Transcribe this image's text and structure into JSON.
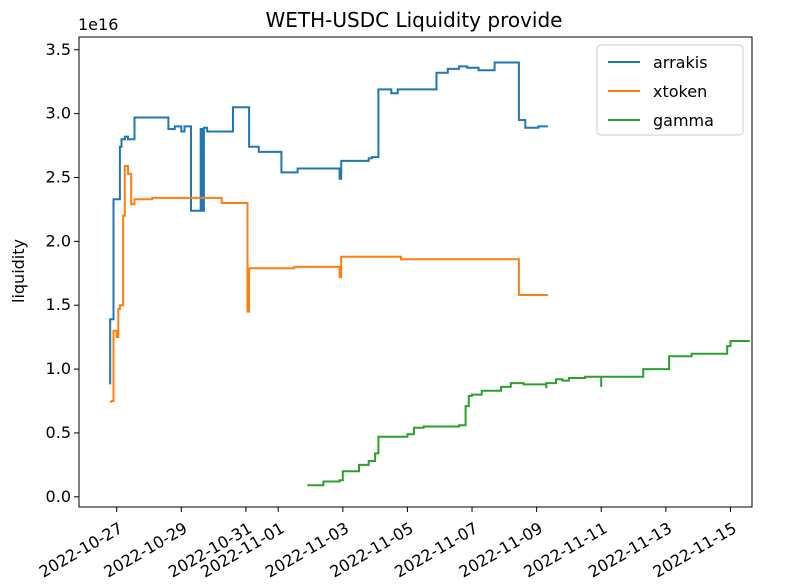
{
  "chart_data": {
    "type": "line",
    "title": "WETH-USDC Liquidity provide",
    "xlabel": "",
    "ylabel": "liquidity",
    "y_scale_label": "1e16",
    "ylim": [
      -0.08,
      3.6
    ],
    "y_ticks": [
      0.0,
      0.5,
      1.0,
      1.5,
      2.0,
      2.5,
      3.0,
      3.5
    ],
    "y_tick_labels": [
      "0.0",
      "0.5",
      "1.0",
      "1.5",
      "2.0",
      "2.5",
      "3.0",
      "3.5"
    ],
    "xlim": [
      "2022-10-25 20:00",
      "2022-11-15 16:00"
    ],
    "x_ticks": [
      "2022-10-27",
      "2022-10-29",
      "2022-10-31",
      "2022-11-01",
      "2022-11-03",
      "2022-11-05",
      "2022-11-07",
      "2022-11-09",
      "2022-11-11",
      "2022-11-13",
      "2022-11-15"
    ],
    "x_tick_labels": [
      "2022-10-27",
      "2022-10-29",
      "2022-10-31",
      "2022-11-01",
      "2022-11-03",
      "2022-11-05",
      "2022-11-07",
      "2022-11-09",
      "2022-11-11",
      "2022-11-13",
      "2022-11-15"
    ],
    "legend_position": "top-right",
    "grid": false,
    "series": [
      {
        "name": "arrakis",
        "color": "#1f77b4",
        "points": [
          [
            "2022-10-26 19:12",
            0.88
          ],
          [
            "2022-10-26 19:12",
            1.39
          ],
          [
            "2022-10-26 21:36",
            1.39
          ],
          [
            "2022-10-26 21:36",
            2.33
          ],
          [
            "2022-10-27 02:24",
            2.33
          ],
          [
            "2022-10-27 02:24",
            2.74
          ],
          [
            "2022-10-27 03:36",
            2.74
          ],
          [
            "2022-10-27 03:36",
            2.8
          ],
          [
            "2022-10-27 06:00",
            2.8
          ],
          [
            "2022-10-27 06:00",
            2.82
          ],
          [
            "2022-10-27 08:24",
            2.82
          ],
          [
            "2022-10-27 08:24",
            2.8
          ],
          [
            "2022-10-27 13:12",
            2.8
          ],
          [
            "2022-10-27 13:12",
            2.97
          ],
          [
            "2022-10-28 14:24",
            2.97
          ],
          [
            "2022-10-28 14:24",
            2.88
          ],
          [
            "2022-10-28 19:12",
            2.88
          ],
          [
            "2022-10-28 19:12",
            2.9
          ],
          [
            "2022-10-29 00:00",
            2.9
          ],
          [
            "2022-10-29 00:00",
            2.86
          ],
          [
            "2022-10-29 02:24",
            2.86
          ],
          [
            "2022-10-29 02:24",
            2.9
          ],
          [
            "2022-10-29 07:12",
            2.9
          ],
          [
            "2022-10-29 07:12",
            2.24
          ],
          [
            "2022-10-29 14:24",
            2.24
          ],
          [
            "2022-10-29 14:24",
            2.88
          ],
          [
            "2022-10-29 15:36",
            2.88
          ],
          [
            "2022-10-29 15:36",
            2.24
          ],
          [
            "2022-10-29 16:48",
            2.24
          ],
          [
            "2022-10-29 16:48",
            2.89
          ],
          [
            "2022-10-29 19:12",
            2.89
          ],
          [
            "2022-10-29 19:12",
            2.86
          ],
          [
            "2022-10-30 14:24",
            2.86
          ],
          [
            "2022-10-30 14:24",
            3.05
          ],
          [
            "2022-10-31 02:24",
            3.05
          ],
          [
            "2022-10-31 02:24",
            2.74
          ],
          [
            "2022-10-31 09:36",
            2.74
          ],
          [
            "2022-10-31 09:36",
            2.7
          ],
          [
            "2022-11-01 02:24",
            2.7
          ],
          [
            "2022-11-01 02:24",
            2.54
          ],
          [
            "2022-11-01 14:24",
            2.54
          ],
          [
            "2022-11-01 14:24",
            2.57
          ],
          [
            "2022-11-02 21:36",
            2.57
          ],
          [
            "2022-11-02 21:36",
            2.49
          ],
          [
            "2022-11-02 22:48",
            2.49
          ],
          [
            "2022-11-02 22:48",
            2.63
          ],
          [
            "2022-11-03 19:12",
            2.63
          ],
          [
            "2022-11-03 19:12",
            2.65
          ],
          [
            "2022-11-03 21:36",
            2.65
          ],
          [
            "2022-11-03 21:36",
            2.66
          ],
          [
            "2022-11-04 02:24",
            2.66
          ],
          [
            "2022-11-04 02:24",
            3.19
          ],
          [
            "2022-11-04 12:00",
            3.19
          ],
          [
            "2022-11-04 12:00",
            3.16
          ],
          [
            "2022-11-04 16:48",
            3.16
          ],
          [
            "2022-11-04 16:48",
            3.19
          ],
          [
            "2022-11-05 21:36",
            3.19
          ],
          [
            "2022-11-05 21:36",
            3.32
          ],
          [
            "2022-11-06 06:00",
            3.32
          ],
          [
            "2022-11-06 06:00",
            3.35
          ],
          [
            "2022-11-06 14:24",
            3.35
          ],
          [
            "2022-11-06 14:24",
            3.37
          ],
          [
            "2022-11-06 20:24",
            3.37
          ],
          [
            "2022-11-06 20:24",
            3.36
          ],
          [
            "2022-11-07 04:48",
            3.36
          ],
          [
            "2022-11-07 04:48",
            3.34
          ],
          [
            "2022-11-07 16:48",
            3.34
          ],
          [
            "2022-11-07 16:48",
            3.4
          ],
          [
            "2022-11-08 10:48",
            3.4
          ],
          [
            "2022-11-08 10:48",
            2.95
          ],
          [
            "2022-11-08 15:36",
            2.95
          ],
          [
            "2022-11-08 15:36",
            2.89
          ],
          [
            "2022-11-09 01:12",
            2.89
          ],
          [
            "2022-11-09 01:12",
            2.9
          ],
          [
            "2022-11-09 08:24",
            2.9
          ]
        ]
      },
      {
        "name": "xtoken",
        "color": "#ff7f0e",
        "points": [
          [
            "2022-10-26 19:12",
            0.74
          ],
          [
            "2022-10-26 20:24",
            0.75
          ],
          [
            "2022-10-26 21:36",
            0.75
          ],
          [
            "2022-10-26 21:36",
            1.3
          ],
          [
            "2022-10-27 00:00",
            1.3
          ],
          [
            "2022-10-27 00:00",
            1.25
          ],
          [
            "2022-10-27 01:12",
            1.25
          ],
          [
            "2022-10-27 01:12",
            1.47
          ],
          [
            "2022-10-27 02:24",
            1.47
          ],
          [
            "2022-10-27 02:24",
            1.5
          ],
          [
            "2022-10-27 04:48",
            1.5
          ],
          [
            "2022-10-27 04:48",
            2.2
          ],
          [
            "2022-10-27 06:00",
            2.2
          ],
          [
            "2022-10-27 06:00",
            2.59
          ],
          [
            "2022-10-27 08:24",
            2.59
          ],
          [
            "2022-10-27 08:24",
            2.53
          ],
          [
            "2022-10-27 10:48",
            2.53
          ],
          [
            "2022-10-27 10:48",
            2.29
          ],
          [
            "2022-10-27 13:12",
            2.29
          ],
          [
            "2022-10-27 13:12",
            2.33
          ],
          [
            "2022-10-28 02:24",
            2.33
          ],
          [
            "2022-10-28 02:24",
            2.34
          ],
          [
            "2022-10-30 06:00",
            2.34
          ],
          [
            "2022-10-30 06:00",
            2.3
          ],
          [
            "2022-10-31 01:12",
            2.3
          ],
          [
            "2022-10-31 01:12",
            1.45
          ],
          [
            "2022-10-31 02:24",
            1.45
          ],
          [
            "2022-10-31 02:24",
            1.79
          ],
          [
            "2022-11-01 12:00",
            1.79
          ],
          [
            "2022-11-01 12:00",
            1.8
          ],
          [
            "2022-11-02 21:36",
            1.8
          ],
          [
            "2022-11-02 21:36",
            1.72
          ],
          [
            "2022-11-02 22:48",
            1.72
          ],
          [
            "2022-11-02 22:48",
            1.88
          ],
          [
            "2022-11-04 19:12",
            1.88
          ],
          [
            "2022-11-04 19:12",
            1.86
          ],
          [
            "2022-11-08 10:48",
            1.86
          ],
          [
            "2022-11-08 10:48",
            1.58
          ],
          [
            "2022-11-09 08:24",
            1.58
          ]
        ]
      },
      {
        "name": "gamma",
        "color": "#2ca02c",
        "points": [
          [
            "2022-11-01 21:36",
            0.09
          ],
          [
            "2022-11-02 09:36",
            0.09
          ],
          [
            "2022-11-02 09:36",
            0.12
          ],
          [
            "2022-11-02 21:36",
            0.12
          ],
          [
            "2022-11-02 21:36",
            0.13
          ],
          [
            "2022-11-03 00:00",
            0.13
          ],
          [
            "2022-11-03 00:00",
            0.2
          ],
          [
            "2022-11-03 12:00",
            0.2
          ],
          [
            "2022-11-03 12:00",
            0.25
          ],
          [
            "2022-11-03 19:12",
            0.25
          ],
          [
            "2022-11-03 19:12",
            0.28
          ],
          [
            "2022-11-04 00:00",
            0.28
          ],
          [
            "2022-11-04 00:00",
            0.34
          ],
          [
            "2022-11-04 02:24",
            0.34
          ],
          [
            "2022-11-04 02:24",
            0.47
          ],
          [
            "2022-11-05 00:00",
            0.47
          ],
          [
            "2022-11-05 00:00",
            0.49
          ],
          [
            "2022-11-05 04:48",
            0.49
          ],
          [
            "2022-11-05 04:48",
            0.54
          ],
          [
            "2022-11-05 12:00",
            0.54
          ],
          [
            "2022-11-05 12:00",
            0.55
          ],
          [
            "2022-11-06 14:24",
            0.55
          ],
          [
            "2022-11-06 14:24",
            0.56
          ],
          [
            "2022-11-06 19:12",
            0.56
          ],
          [
            "2022-11-06 19:12",
            0.71
          ],
          [
            "2022-11-06 21:36",
            0.71
          ],
          [
            "2022-11-06 21:36",
            0.79
          ],
          [
            "2022-11-07 00:00",
            0.79
          ],
          [
            "2022-11-07 00:00",
            0.8
          ],
          [
            "2022-11-07 07:12",
            0.8
          ],
          [
            "2022-11-07 07:12",
            0.83
          ],
          [
            "2022-11-07 21:36",
            0.83
          ],
          [
            "2022-11-07 21:36",
            0.86
          ],
          [
            "2022-11-08 04:48",
            0.86
          ],
          [
            "2022-11-08 04:48",
            0.89
          ],
          [
            "2022-11-08 14:24",
            0.89
          ],
          [
            "2022-11-08 14:24",
            0.88
          ],
          [
            "2022-11-09 07:12",
            0.88
          ],
          [
            "2022-11-09 07:12",
            0.85
          ],
          [
            "2022-11-09 07:12",
            0.89
          ],
          [
            "2022-11-09 14:24",
            0.89
          ],
          [
            "2022-11-09 14:24",
            0.92
          ],
          [
            "2022-11-09 19:12",
            0.92
          ],
          [
            "2022-11-09 19:12",
            0.91
          ],
          [
            "2022-11-10 00:00",
            0.91
          ],
          [
            "2022-11-10 00:00",
            0.93
          ],
          [
            "2022-11-10 12:00",
            0.93
          ],
          [
            "2022-11-10 12:00",
            0.94
          ],
          [
            "2022-11-11 00:00",
            0.94
          ],
          [
            "2022-11-11 00:00",
            0.86
          ],
          [
            "2022-11-11 00:00",
            0.94
          ],
          [
            "2022-11-12 07:12",
            0.94
          ],
          [
            "2022-11-12 07:12",
            1.0
          ],
          [
            "2022-11-13 02:24",
            1.0
          ],
          [
            "2022-11-13 02:24",
            1.1
          ],
          [
            "2022-11-13 19:12",
            1.1
          ],
          [
            "2022-11-13 19:12",
            1.12
          ],
          [
            "2022-11-14 21:36",
            1.12
          ],
          [
            "2022-11-14 21:36",
            1.18
          ],
          [
            "2022-11-15 00:00",
            1.18
          ],
          [
            "2022-11-15 00:00",
            1.22
          ],
          [
            "2022-11-15 14:24",
            1.22
          ]
        ]
      }
    ]
  }
}
